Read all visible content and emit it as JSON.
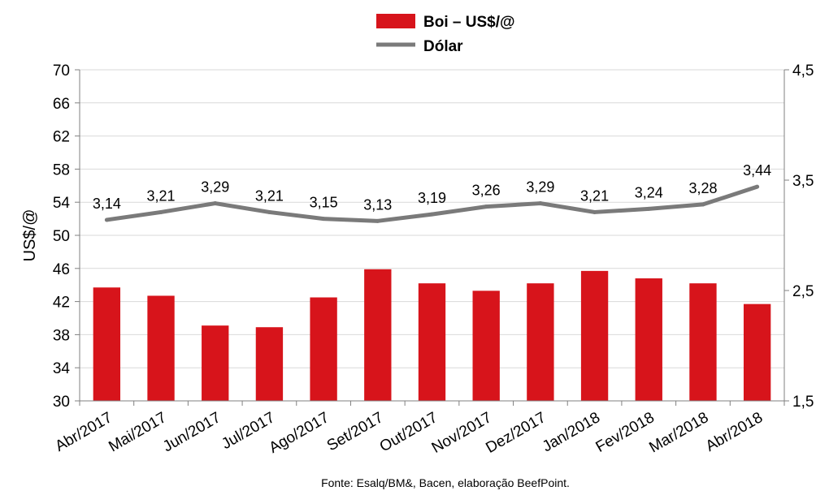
{
  "chart_data": {
    "type": "bar",
    "categories": [
      "Abr/2017",
      "Mai/2017",
      "Jun/2017",
      "Jul/2017",
      "Ago/2017",
      "Set/2017",
      "Out/2017",
      "Nov/2017",
      "Dez/2017",
      "Jan/2018",
      "Fev/2018",
      "Mar/2018",
      "Abr/2018"
    ],
    "series": [
      {
        "name": "Boi – US$/@",
        "type": "bar",
        "axis": "left",
        "color": "#d7141b",
        "values": [
          43.7,
          42.7,
          39.1,
          38.9,
          42.5,
          45.9,
          44.2,
          43.3,
          44.2,
          45.7,
          44.8,
          44.2,
          41.7
        ]
      },
      {
        "name": "Dólar",
        "type": "line",
        "axis": "right",
        "color": "#7a7a7a",
        "values": [
          3.14,
          3.21,
          3.29,
          3.21,
          3.15,
          3.13,
          3.19,
          3.26,
          3.29,
          3.21,
          3.24,
          3.28,
          3.44
        ],
        "labels": [
          "3,14",
          "3,21",
          "3,29",
          "3,21",
          "3,15",
          "3,13",
          "3,19",
          "3,26",
          "3,29",
          "3,21",
          "3,24",
          "3,28",
          "3,44"
        ]
      }
    ],
    "y_left": {
      "label": "US$/@",
      "ylim": [
        30,
        70
      ],
      "ticks": [
        "30",
        "34",
        "38",
        "42",
        "46",
        "50",
        "54",
        "58",
        "62",
        "66",
        "70"
      ]
    },
    "y_right": {
      "label": "",
      "ylim": [
        1.5,
        4.5
      ],
      "ticks": [
        "1,5",
        "2,5",
        "3,5",
        "4,5"
      ]
    },
    "grid": true,
    "legend_position": "top-center",
    "source": "Fonte: Esalq/BM&, Bacen, elaboração BeefPoint."
  }
}
